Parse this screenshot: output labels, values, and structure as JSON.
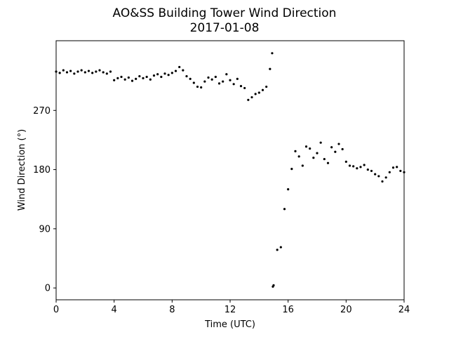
{
  "chart_data": {
    "type": "scatter",
    "title": "AO&SS Building Tower Wind Direction",
    "subtitle": "2017-01-08",
    "x_label": "Time (UTC)",
    "y_label": "Wind Direction (°)",
    "color": "#000000",
    "xlim": [
      0,
      24
    ],
    "xticks": [
      0,
      4,
      8,
      12,
      16,
      20,
      24
    ],
    "ylim": [
      -18,
      376
    ],
    "yticks": [
      0,
      90,
      180,
      270
    ],
    "x": [
      0,
      0.25,
      0.5,
      0.75,
      1,
      1.25,
      1.5,
      1.75,
      2,
      2.25,
      2.5,
      2.75,
      3,
      3.25,
      3.5,
      3.75,
      4,
      4.25,
      4.5,
      4.75,
      5,
      5.25,
      5.5,
      5.75,
      6,
      6.25,
      6.5,
      6.75,
      7,
      7.25,
      7.5,
      7.75,
      8,
      8.25,
      8.5,
      8.75,
      9,
      9.25,
      9.5,
      9.75,
      10,
      10.25,
      10.5,
      10.75,
      11,
      11.25,
      11.5,
      11.75,
      12,
      12.25,
      12.5,
      12.75,
      13,
      13.25,
      13.5,
      13.75,
      14,
      14.25,
      14.5,
      14.75,
      14.9,
      14.95,
      15,
      15.25,
      15.5,
      15.75,
      16,
      16.25,
      16.5,
      16.75,
      17,
      17.25,
      17.5,
      17.75,
      18,
      18.25,
      18.5,
      18.75,
      19,
      19.25,
      19.5,
      19.75,
      20,
      20.25,
      20.5,
      20.75,
      21,
      21.25,
      21.5,
      21.75,
      22,
      22.25,
      22.5,
      22.75,
      23,
      23.25,
      23.5,
      23.75,
      24
    ],
    "values": [
      329,
      327,
      331,
      328,
      330,
      326,
      329,
      331,
      328,
      330,
      327,
      329,
      331,
      328,
      326,
      329,
      316,
      319,
      321,
      317,
      320,
      315,
      318,
      322,
      319,
      321,
      317,
      323,
      325,
      321,
      326,
      324,
      327,
      330,
      336,
      331,
      322,
      318,
      312,
      306,
      305,
      314,
      320,
      317,
      321,
      311,
      314,
      325,
      316,
      310,
      318,
      307,
      304,
      286,
      290,
      295,
      297,
      301,
      306,
      333,
      357,
      2,
      4,
      58,
      62,
      120,
      150,
      181,
      208,
      200,
      186,
      215,
      212,
      198,
      205,
      221,
      196,
      190,
      214,
      207,
      219,
      211,
      192,
      186,
      185,
      182,
      184,
      187,
      180,
      178,
      173,
      170,
      162,
      168,
      176,
      183,
      184,
      178,
      176
    ]
  }
}
